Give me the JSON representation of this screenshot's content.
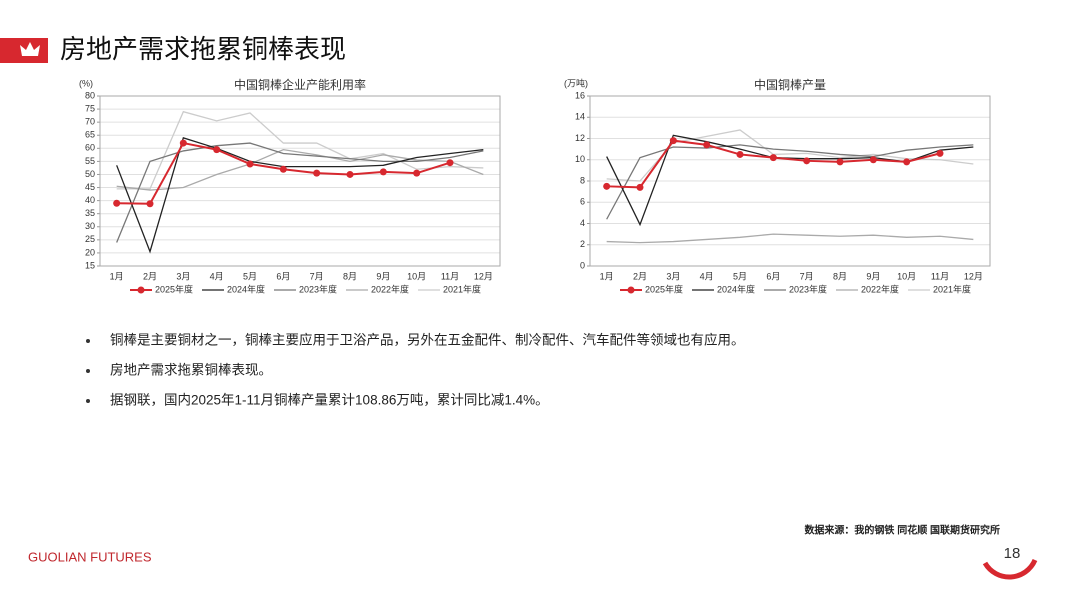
{
  "header": {
    "title": "房地产需求拖累铜棒表现"
  },
  "chart_data": [
    {
      "type": "line",
      "title": "中国铜棒企业产能利用率",
      "ylabel": "(%)",
      "categories": [
        "1月",
        "2月",
        "3月",
        "4月",
        "5月",
        "6月",
        "7月",
        "8月",
        "9月",
        "10月",
        "11月",
        "12月"
      ],
      "ylim": [
        15,
        80
      ],
      "yticks": [
        15,
        20,
        25,
        30,
        35,
        40,
        45,
        50,
        55,
        60,
        65,
        70,
        75,
        80
      ],
      "grid": true,
      "legend": "bottom",
      "series": [
        {
          "name": "2025年度",
          "color": "#d7282f",
          "marker": "circle",
          "values": [
            39,
            38.8,
            62,
            59.5,
            54,
            52,
            50.5,
            50,
            51,
            50.5,
            54.5,
            null
          ]
        },
        {
          "name": "2024年度",
          "color": "#222222",
          "values": [
            53.5,
            20.5,
            64,
            60,
            55,
            53,
            53,
            53,
            53.5,
            56.5,
            58,
            59.5
          ]
        },
        {
          "name": "2023年度",
          "color": "#777777",
          "values": [
            24,
            55,
            59,
            61,
            62,
            58,
            57,
            56,
            55,
            55,
            56.5,
            59
          ]
        },
        {
          "name": "2022年度",
          "color": "#aaaaaa",
          "values": [
            45.5,
            44,
            45,
            50,
            54,
            59.5,
            57.5,
            55,
            57.5,
            55.5,
            55,
            50
          ]
        },
        {
          "name": "2021年度",
          "color": "#cccccc",
          "values": [
            44.5,
            44.5,
            74,
            70.5,
            73.5,
            62,
            62,
            56,
            58,
            52,
            53,
            52.5
          ]
        }
      ]
    },
    {
      "type": "line",
      "title": "中国铜棒产量",
      "ylabel": "(万吨)",
      "categories": [
        "1月",
        "2月",
        "3月",
        "4月",
        "5月",
        "6月",
        "7月",
        "8月",
        "9月",
        "10月",
        "11月",
        "12月"
      ],
      "ylim": [
        0,
        16
      ],
      "yticks": [
        0,
        2,
        4,
        6,
        8,
        10,
        12,
        14,
        16
      ],
      "grid": true,
      "legend": "bottom",
      "series": [
        {
          "name": "2025年度",
          "color": "#d7282f",
          "marker": "circle",
          "values": [
            7.5,
            7.4,
            11.8,
            11.4,
            10.5,
            10.2,
            9.9,
            9.8,
            10,
            9.8,
            10.6,
            null
          ]
        },
        {
          "name": "2024年度",
          "color": "#222222",
          "values": [
            10.3,
            3.9,
            12.3,
            11.7,
            11.0,
            10.2,
            10.1,
            10.1,
            10.2,
            9.8,
            10.9,
            11.2
          ]
        },
        {
          "name": "2023年度",
          "color": "#777777",
          "values": [
            4.4,
            10.2,
            11.2,
            11.1,
            11.4,
            11.0,
            10.8,
            10.5,
            10.3,
            10.9,
            11.2,
            11.4
          ]
        },
        {
          "name": "2022年度",
          "color": "#aaaaaa",
          "values": [
            2.3,
            2.2,
            2.3,
            2.5,
            2.7,
            3.0,
            2.9,
            2.8,
            2.9,
            2.7,
            2.8,
            2.5
          ]
        },
        {
          "name": "2021年度",
          "color": "#cccccc",
          "values": [
            8.2,
            8.0,
            11.6,
            12.2,
            12.8,
            10.5,
            10.6,
            10.2,
            10.5,
            10.1,
            10.0,
            9.6
          ]
        }
      ]
    }
  ],
  "bullets": [
    "铜棒是主要铜材之一，铜棒主要应用于卫浴产品，另外在五金配件、制冷配件、汽车配件等领域也有应用。",
    "房地产需求拖累铜棒表现。",
    "据钢联，国内2025年1-11月铜棒产量累计108.86万吨，累计同比减1.4%。"
  ],
  "source": "数据来源：我的钢铁  同花顺  国联期货研究所",
  "footer": {
    "brand": "GUOLIAN FUTURES",
    "page": "18"
  }
}
